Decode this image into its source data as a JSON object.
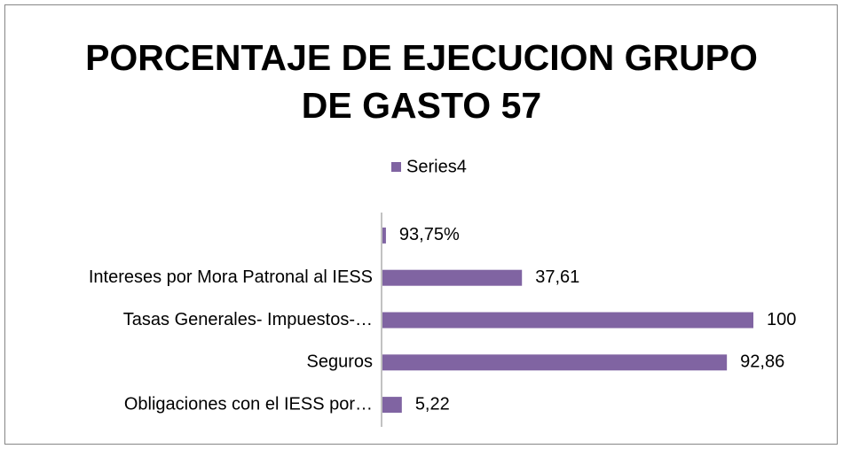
{
  "chart_data": {
    "type": "barh",
    "title": "PORCENTAJE DE EJECUCION GRUPO DE GASTO 57",
    "categories": [
      "Obligaciones con el IESS por…",
      "Seguros",
      "Tasas Generales- Impuestos-…",
      "Intereses por Mora Patronal al IESS",
      null
    ],
    "series": [
      {
        "name": "Series4",
        "color": "#8064a2",
        "values": [
          5.22,
          92.86,
          100,
          37.61,
          0.9375
        ],
        "value_labels": [
          "5,22",
          "92,86",
          "100",
          "37,61",
          "93,75%"
        ]
      }
    ],
    "xlim": [
      0,
      100
    ],
    "legend": "top"
  }
}
